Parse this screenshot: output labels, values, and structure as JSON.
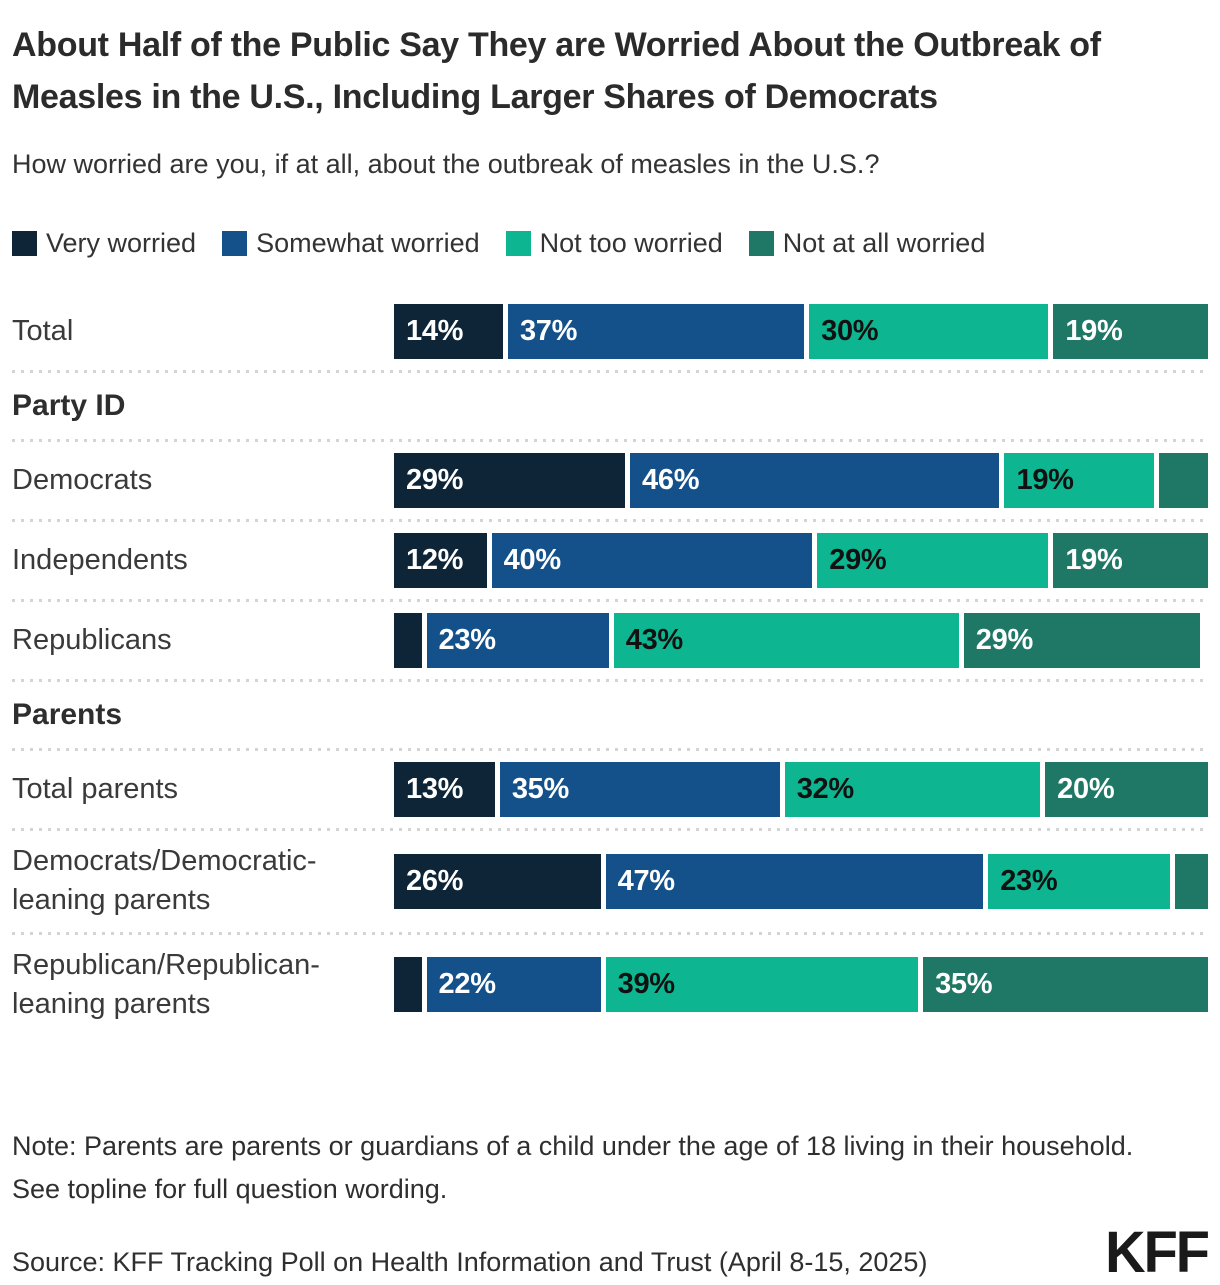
{
  "header": {
    "title": "About Half of the Public Say They are Worried About the Outbreak of Measles in the U.S., Including Larger Shares of Democrats",
    "subtitle": "How worried are you, if at all, about the outbreak of measles in the U.S.?"
  },
  "colors": {
    "very_worried": "#0d2537",
    "somewhat_worried": "#14518a",
    "not_too_worried": "#0db690",
    "not_at_all_worried": "#1f7866",
    "separator": "#d4d4d4",
    "label_on_light_segment": "#111111",
    "label_on_dark_segment": "#ffffff"
  },
  "legend": [
    {
      "label": "Very worried",
      "color": "#0d2537",
      "dark_text": false
    },
    {
      "label": "Somewhat worried",
      "color": "#14518a",
      "dark_text": false
    },
    {
      "label": "Not too worried",
      "color": "#0db690",
      "dark_text": true
    },
    {
      "label": "Not at all worried",
      "color": "#1f7866",
      "dark_text": false
    }
  ],
  "rows": [
    {
      "kind": "bar",
      "label": "Total",
      "segments": [
        {
          "value": 14,
          "text": "14%"
        },
        {
          "value": 37,
          "text": "37%"
        },
        {
          "value": 30,
          "text": "30%"
        },
        {
          "value": 19,
          "text": "19%"
        }
      ]
    },
    {
      "kind": "section",
      "label": "Party ID"
    },
    {
      "kind": "bar",
      "label": "Democrats",
      "segments": [
        {
          "value": 29,
          "text": "29%"
        },
        {
          "value": 46,
          "text": "46%"
        },
        {
          "value": 19,
          "text": "19%"
        },
        {
          "value": 6,
          "text": ""
        }
      ]
    },
    {
      "kind": "bar",
      "label": "Independents",
      "segments": [
        {
          "value": 12,
          "text": "12%"
        },
        {
          "value": 40,
          "text": "40%"
        },
        {
          "value": 29,
          "text": "29%"
        },
        {
          "value": 19,
          "text": "19%"
        }
      ]
    },
    {
      "kind": "bar",
      "label": "Republicans",
      "segments": [
        {
          "value": 4,
          "text": ""
        },
        {
          "value": 23,
          "text": "23%"
        },
        {
          "value": 43,
          "text": "43%"
        },
        {
          "value": 29,
          "text": "29%"
        }
      ]
    },
    {
      "kind": "section",
      "label": "Parents"
    },
    {
      "kind": "bar",
      "label": "Total parents",
      "segments": [
        {
          "value": 13,
          "text": "13%"
        },
        {
          "value": 35,
          "text": "35%"
        },
        {
          "value": 32,
          "text": "32%"
        },
        {
          "value": 20,
          "text": "20%"
        }
      ]
    },
    {
      "kind": "bar",
      "label": "Democrats/Democratic-leaning parents",
      "segments": [
        {
          "value": 26,
          "text": "26%"
        },
        {
          "value": 47,
          "text": "47%"
        },
        {
          "value": 23,
          "text": "23%"
        },
        {
          "value": 4,
          "text": ""
        }
      ]
    },
    {
      "kind": "bar",
      "label": "Republican/Republican-leaning parents",
      "segments": [
        {
          "value": 4,
          "text": ""
        },
        {
          "value": 22,
          "text": "22%"
        },
        {
          "value": 39,
          "text": "39%"
        },
        {
          "value": 35,
          "text": "35%"
        }
      ]
    }
  ],
  "footer": {
    "note": "Note: Parents are parents or guardians of a child under the age of 18 living in their household.\nSee topline for full question wording.",
    "source": "Source: KFF Tracking Poll on Health Information and Trust (April 8-15, 2025)",
    "logo": "KFF"
  },
  "chart_data": {
    "type": "bar",
    "variant": "horizontal-stacked",
    "unit": "percent",
    "title": "About Half of the Public Say They are Worried About the Outbreak of Measles in the U.S., Including Larger Shares of Democrats",
    "subtitle": "How worried are you, if at all, about the outbreak of measles in the U.S.?",
    "legend_position": "top",
    "axis": {
      "x_range": [
        0,
        100
      ],
      "gridlines": false
    },
    "section_groups": [
      {
        "label": null,
        "categories": [
          "Total"
        ]
      },
      {
        "label": "Party ID",
        "categories": [
          "Democrats",
          "Independents",
          "Republicans"
        ]
      },
      {
        "label": "Parents",
        "categories": [
          "Total parents",
          "Democrats/Democratic-leaning parents",
          "Republican/Republican-leaning parents"
        ]
      }
    ],
    "categories": [
      "Total",
      "Democrats",
      "Independents",
      "Republicans",
      "Total parents",
      "Democrats/Democratic-leaning parents",
      "Republican/Republican-leaning parents"
    ],
    "series": [
      {
        "name": "Very worried",
        "color": "#0d2537",
        "values": [
          14,
          29,
          12,
          4,
          13,
          26,
          4
        ]
      },
      {
        "name": "Somewhat worried",
        "color": "#14518a",
        "values": [
          37,
          46,
          40,
          23,
          35,
          47,
          22
        ]
      },
      {
        "name": "Not too worried",
        "color": "#0db690",
        "values": [
          30,
          19,
          29,
          43,
          32,
          23,
          39
        ]
      },
      {
        "name": "Not at all worried",
        "color": "#1f7866",
        "values": [
          19,
          6,
          19,
          29,
          20,
          4,
          35
        ]
      }
    ],
    "unlabeled_small_values_estimated": true,
    "note": "Note: Parents are parents or guardians of a child under the age of 18 living in their household. See topline for full question wording.",
    "source": "Source: KFF Tracking Poll on Health Information and Trust (April 8-15, 2025)"
  }
}
